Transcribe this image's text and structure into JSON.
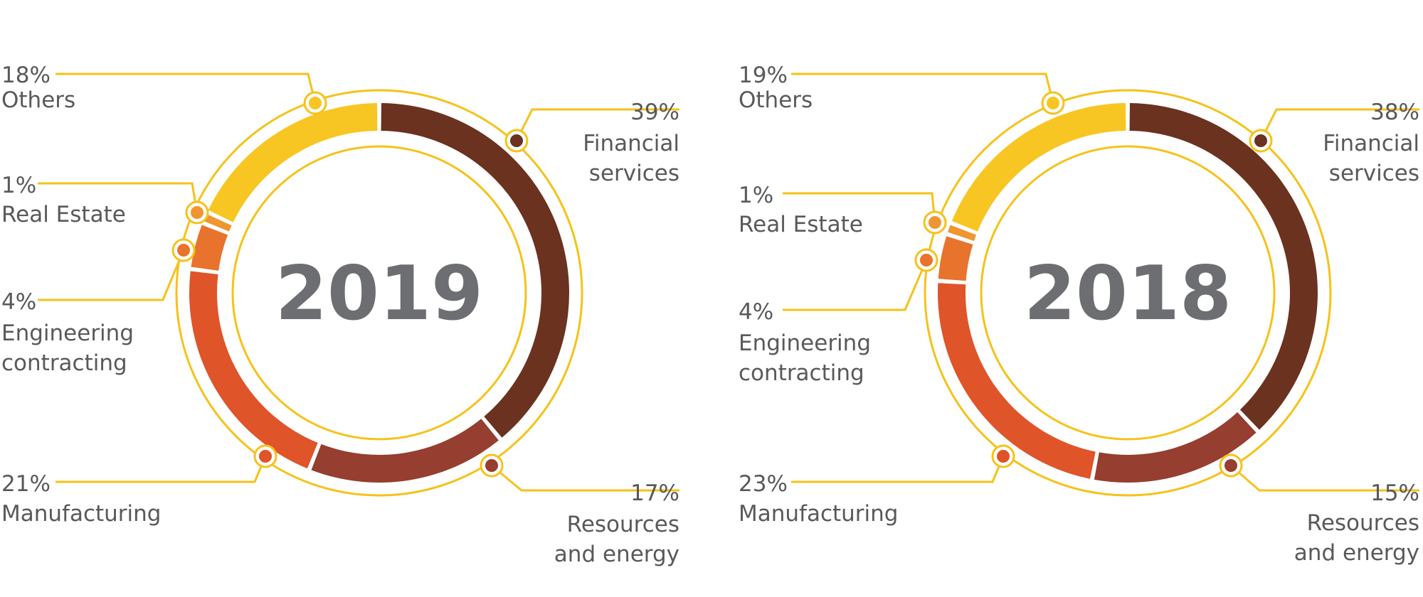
{
  "colors": {
    "guide": "#f6c21a",
    "others": "#f8c623",
    "real_estate": "#ef9630",
    "engineering_contracting": "#e8732c",
    "manufacturing": "#df5428",
    "resources_and_energy": "#963e2f",
    "financial_services": "#6b321f"
  },
  "chart_data": [
    {
      "type": "pie",
      "title": "2019",
      "slices": [
        {
          "label": "Financial services",
          "value": 39,
          "value_label": "39%",
          "color": "#6b321f"
        },
        {
          "label": "Resources and energy",
          "value": 17,
          "value_label": "17%",
          "color": "#963e2f"
        },
        {
          "label": "Manufacturing",
          "value": 21,
          "value_label": "21%",
          "color": "#df5428"
        },
        {
          "label": "Engineering contracting",
          "value": 4,
          "value_label": "4%",
          "color": "#e8732c"
        },
        {
          "label": "Real Estate",
          "value": 1,
          "value_label": "1%",
          "color": "#ef9630"
        },
        {
          "label": "Others",
          "value": 18,
          "value_label": "18%",
          "color": "#f8c623"
        }
      ]
    },
    {
      "type": "pie",
      "title": "2018",
      "slices": [
        {
          "label": "Financial services",
          "value": 38,
          "value_label": "38%",
          "color": "#6b321f"
        },
        {
          "label": "Resources and energy",
          "value": 15,
          "value_label": "15%",
          "color": "#963e2f"
        },
        {
          "label": "Manufacturing",
          "value": 23,
          "value_label": "23%",
          "color": "#df5428"
        },
        {
          "label": "Engineering contracting",
          "value": 4,
          "value_label": "4%",
          "color": "#e8732c"
        },
        {
          "label": "Real Estate",
          "value": 1,
          "value_label": "1%",
          "color": "#ef9630"
        },
        {
          "label": "Others",
          "value": 19,
          "value_label": "19%",
          "color": "#f8c623"
        }
      ]
    }
  ]
}
